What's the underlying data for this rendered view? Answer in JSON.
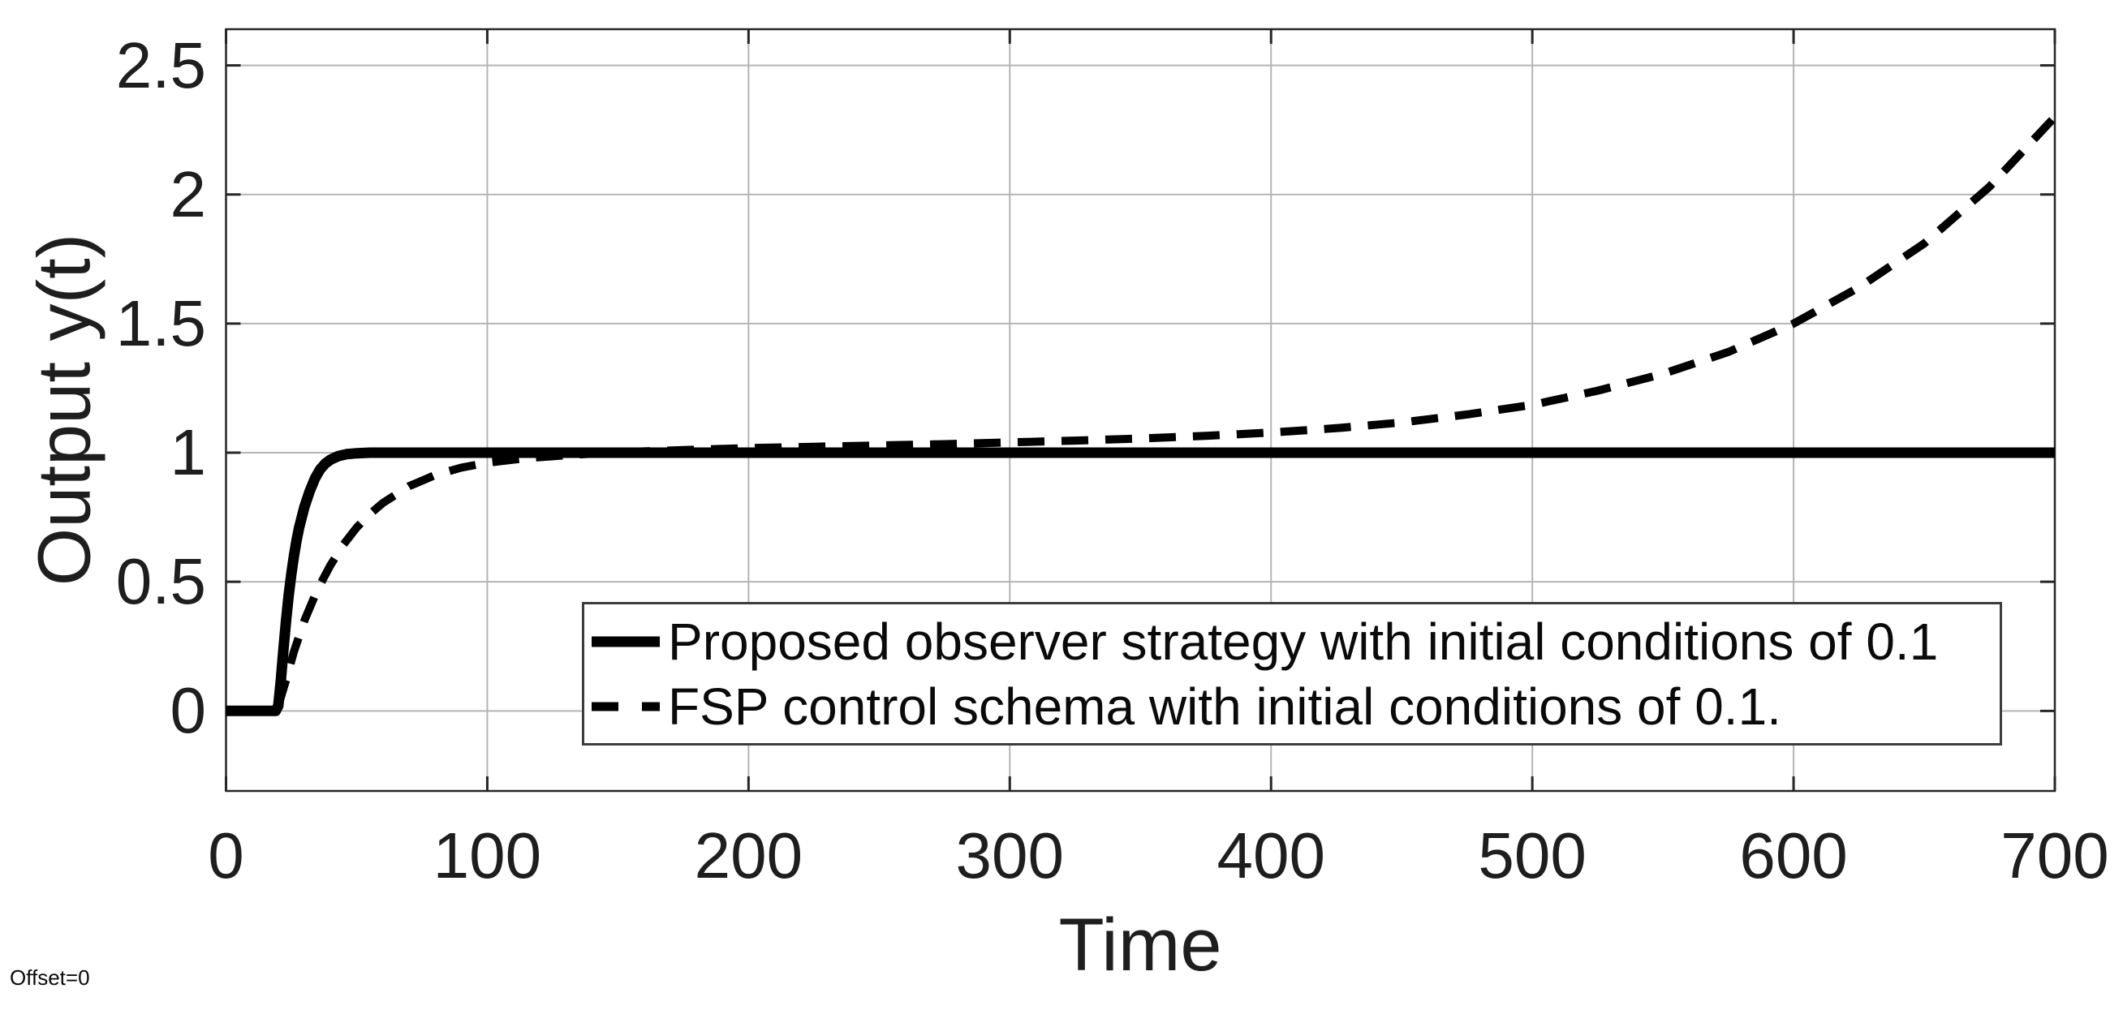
{
  "figure": {
    "background": "#ffffff"
  },
  "colors": {
    "curve": "#000000",
    "axis": "#262626",
    "grid": "#b4b4b4",
    "text": "#1e1e1e",
    "legend_border": "#3c3c3c"
  },
  "annotations": {
    "offset_label": "Offset=0"
  },
  "chart_data": {
    "type": "line",
    "title": "",
    "xlabel": "Time",
    "ylabel": "Output y(t)",
    "xlim": [
      0,
      700
    ],
    "ylim": [
      -0.31,
      2.64
    ],
    "xticks": [
      0,
      100,
      200,
      300,
      400,
      500,
      600,
      700
    ],
    "yticks": [
      0,
      0.5,
      1,
      1.5,
      2,
      2.5
    ],
    "grid": true,
    "box": true,
    "legend_position": "inside-lower-center-right",
    "series": [
      {
        "name": "Proposed observer strategy with initial conditions of 0.1",
        "style": "solid",
        "line_width": 13,
        "color": "#000000",
        "points": [
          [
            0,
            0
          ],
          [
            19,
            0
          ],
          [
            20,
            0.02
          ],
          [
            21,
            0.12
          ],
          [
            22,
            0.24
          ],
          [
            23,
            0.35
          ],
          [
            24,
            0.45
          ],
          [
            25,
            0.53
          ],
          [
            26,
            0.6
          ],
          [
            27,
            0.66
          ],
          [
            28,
            0.71
          ],
          [
            30,
            0.79
          ],
          [
            32,
            0.85
          ],
          [
            34,
            0.9
          ],
          [
            36,
            0.935
          ],
          [
            38,
            0.958
          ],
          [
            40,
            0.973
          ],
          [
            43,
            0.987
          ],
          [
            46,
            0.994
          ],
          [
            50,
            0.998
          ],
          [
            55,
            1.0
          ],
          [
            700,
            1.0
          ]
        ]
      },
      {
        "name": "FSP control schema with initial conditions of 0.1.",
        "style": "dashed",
        "line_width": 10,
        "dash_pattern": [
          33,
          21
        ],
        "color": "#000000",
        "points": [
          [
            20,
            0.02
          ],
          [
            23,
            0.12
          ],
          [
            26,
            0.23
          ],
          [
            30,
            0.35
          ],
          [
            35,
            0.47
          ],
          [
            40,
            0.565
          ],
          [
            45,
            0.645
          ],
          [
            50,
            0.71
          ],
          [
            55,
            0.762
          ],
          [
            60,
            0.805
          ],
          [
            70,
            0.87
          ],
          [
            80,
            0.913
          ],
          [
            90,
            0.942
          ],
          [
            100,
            0.961
          ],
          [
            115,
            0.979
          ],
          [
            130,
            0.99
          ],
          [
            150,
            1.002
          ],
          [
            175,
            1.01
          ],
          [
            200,
            1.018
          ],
          [
            225,
            1.023
          ],
          [
            250,
            1.028
          ],
          [
            275,
            1.033
          ],
          [
            300,
            1.04
          ],
          [
            325,
            1.047
          ],
          [
            350,
            1.055
          ],
          [
            375,
            1.065
          ],
          [
            400,
            1.078
          ],
          [
            425,
            1.095
          ],
          [
            450,
            1.117
          ],
          [
            475,
            1.148
          ],
          [
            500,
            1.185
          ],
          [
            525,
            1.24
          ],
          [
            550,
            1.305
          ],
          [
            575,
            1.39
          ],
          [
            600,
            1.5
          ],
          [
            625,
            1.64
          ],
          [
            650,
            1.81
          ],
          [
            675,
            2.03
          ],
          [
            700,
            2.3
          ]
        ]
      }
    ]
  }
}
